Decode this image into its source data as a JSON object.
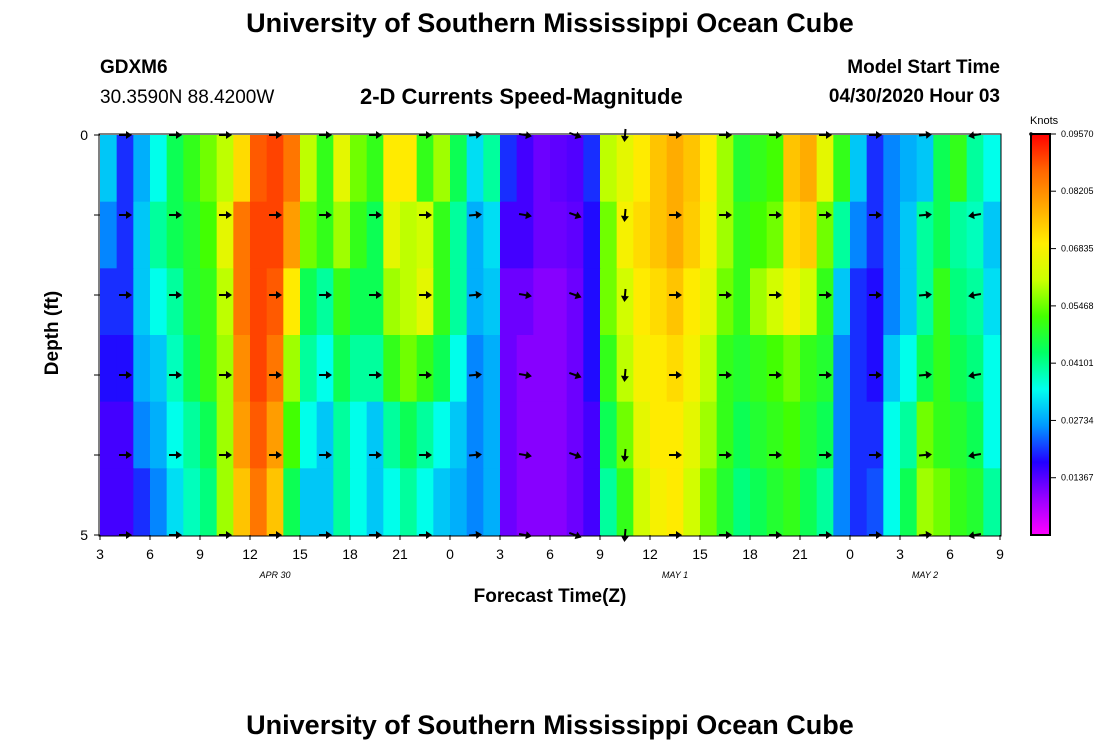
{
  "header": {
    "title": "University of Southern Mississippi Ocean Cube",
    "station": "GDXM6",
    "coordinates": "30.3590N 88.4200W",
    "product": "2-D Currents Speed-Magnitude",
    "model_start_label": "Model Start Time",
    "model_start_value": "04/30/2020 Hour 03"
  },
  "footer": {
    "title": "University of Southern Mississippi Ocean Cube"
  },
  "chart_data": {
    "type": "heatmap",
    "title": "2-D Currents Speed-Magnitude",
    "xlabel": "Forecast Time(Z)",
    "ylabel": "Depth (ft)",
    "x_tick_labels": [
      "3",
      "6",
      "9",
      "12",
      "15",
      "18",
      "21",
      "0",
      "3",
      "6",
      "9",
      "12",
      "15",
      "18",
      "21",
      "0",
      "3",
      "6",
      "9"
    ],
    "date_labels": [
      {
        "label": "APR 30",
        "tick_index": 3.5
      },
      {
        "label": "MAY 1",
        "tick_index": 11.5
      },
      {
        "label": "MAY 2",
        "tick_index": 16.5
      }
    ],
    "y_tick_labels": [
      "0",
      "5"
    ],
    "ylim": [
      0,
      5
    ],
    "colorbar": {
      "unit": "Knots",
      "min": 0.0,
      "max": 0.0957,
      "tick_values": [
        "0.09570",
        "0.08205",
        "0.06835",
        "0.05468",
        "0.04101",
        "0.02734",
        "0.01367"
      ],
      "colors": [
        "#ff00ff",
        "#9900ff",
        "#2200ff",
        "#0099ff",
        "#00ffee",
        "#00ff66",
        "#44ff00",
        "#ccff00",
        "#ffee00",
        "#ffaa00",
        "#ff6600",
        "#ff0000"
      ]
    },
    "cell_columns": 54,
    "speeds_by_depth_band": [
      [
        0.03,
        0.02,
        0.028,
        0.035,
        0.045,
        0.05,
        0.055,
        0.06,
        0.072,
        0.088,
        0.09,
        0.085,
        0.06,
        0.05,
        0.065,
        0.055,
        0.05,
        0.07,
        0.07,
        0.05,
        0.058,
        0.045,
        0.032,
        0.04,
        0.02,
        0.015,
        0.012,
        0.013,
        0.014,
        0.02,
        0.06,
        0.065,
        0.07,
        0.075,
        0.078,
        0.075,
        0.07,
        0.058,
        0.048,
        0.05,
        0.052,
        0.075,
        0.078,
        0.065,
        0.05,
        0.03,
        0.02,
        0.025,
        0.028,
        0.03,
        0.045,
        0.05,
        0.04,
        0.035
      ],
      [
        0.025,
        0.02,
        0.03,
        0.04,
        0.045,
        0.048,
        0.052,
        0.065,
        0.085,
        0.09,
        0.09,
        0.08,
        0.055,
        0.05,
        0.058,
        0.05,
        0.045,
        0.065,
        0.06,
        0.062,
        0.05,
        0.04,
        0.028,
        0.032,
        0.015,
        0.015,
        0.012,
        0.012,
        0.013,
        0.018,
        0.055,
        0.068,
        0.072,
        0.075,
        0.078,
        0.074,
        0.068,
        0.058,
        0.05,
        0.052,
        0.055,
        0.072,
        0.074,
        0.055,
        0.04,
        0.025,
        0.02,
        0.025,
        0.03,
        0.04,
        0.045,
        0.04,
        0.038,
        0.03
      ],
      [
        0.02,
        0.02,
        0.03,
        0.035,
        0.04,
        0.048,
        0.05,
        0.06,
        0.085,
        0.09,
        0.088,
        0.07,
        0.045,
        0.04,
        0.05,
        0.045,
        0.045,
        0.058,
        0.06,
        0.065,
        0.05,
        0.04,
        0.028,
        0.03,
        0.012,
        0.012,
        0.01,
        0.01,
        0.012,
        0.018,
        0.055,
        0.062,
        0.07,
        0.072,
        0.075,
        0.07,
        0.065,
        0.055,
        0.05,
        0.058,
        0.062,
        0.068,
        0.062,
        0.05,
        0.03,
        0.02,
        0.018,
        0.025,
        0.03,
        0.04,
        0.05,
        0.042,
        0.04,
        0.032
      ],
      [
        0.018,
        0.018,
        0.028,
        0.03,
        0.038,
        0.045,
        0.05,
        0.058,
        0.082,
        0.09,
        0.085,
        0.058,
        0.04,
        0.035,
        0.045,
        0.04,
        0.04,
        0.05,
        0.055,
        0.05,
        0.045,
        0.035,
        0.025,
        0.028,
        0.012,
        0.01,
        0.01,
        0.01,
        0.012,
        0.018,
        0.05,
        0.06,
        0.068,
        0.07,
        0.072,
        0.068,
        0.06,
        0.05,
        0.048,
        0.05,
        0.052,
        0.055,
        0.05,
        0.048,
        0.025,
        0.02,
        0.018,
        0.03,
        0.035,
        0.045,
        0.05,
        0.045,
        0.042,
        0.035
      ],
      [
        0.015,
        0.015,
        0.025,
        0.028,
        0.035,
        0.04,
        0.045,
        0.058,
        0.08,
        0.088,
        0.08,
        0.052,
        0.035,
        0.03,
        0.04,
        0.035,
        0.03,
        0.04,
        0.045,
        0.04,
        0.035,
        0.03,
        0.025,
        0.028,
        0.012,
        0.01,
        0.01,
        0.01,
        0.012,
        0.015,
        0.045,
        0.055,
        0.065,
        0.07,
        0.07,
        0.065,
        0.058,
        0.05,
        0.045,
        0.048,
        0.05,
        0.052,
        0.048,
        0.045,
        0.025,
        0.02,
        0.02,
        0.035,
        0.04,
        0.055,
        0.05,
        0.048,
        0.045,
        0.035
      ],
      [
        0.015,
        0.015,
        0.02,
        0.025,
        0.032,
        0.038,
        0.042,
        0.058,
        0.075,
        0.085,
        0.075,
        0.045,
        0.03,
        0.03,
        0.04,
        0.035,
        0.03,
        0.035,
        0.04,
        0.035,
        0.03,
        0.028,
        0.025,
        0.028,
        0.012,
        0.01,
        0.01,
        0.01,
        0.012,
        0.015,
        0.04,
        0.05,
        0.062,
        0.068,
        0.07,
        0.062,
        0.055,
        0.048,
        0.042,
        0.045,
        0.048,
        0.05,
        0.045,
        0.04,
        0.025,
        0.02,
        0.022,
        0.035,
        0.045,
        0.058,
        0.055,
        0.05,
        0.048,
        0.04
      ]
    ],
    "vector_depth_rows": 6,
    "vector_tick_columns": 18,
    "vector_directions_deg": [
      0,
      0,
      0,
      0,
      0,
      0,
      0,
      -5,
      10,
      20,
      95,
      0,
      0,
      0,
      0,
      0,
      -5,
      170
    ]
  }
}
